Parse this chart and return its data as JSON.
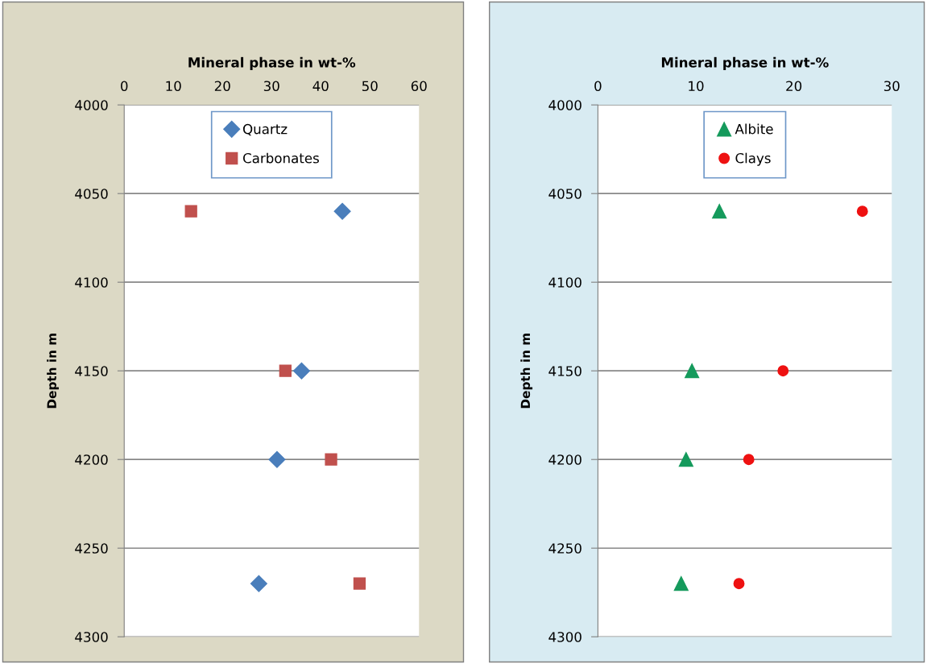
{
  "chart_data": [
    {
      "type": "scatter",
      "xlabel": "Mineral phase in wt-%",
      "ylabel": "Depth in m",
      "xlim": [
        0,
        60
      ],
      "xticks": [
        0,
        10,
        20,
        30,
        40,
        50,
        60
      ],
      "ylim": [
        4300,
        4000
      ],
      "yticks": [
        4000,
        4050,
        4100,
        4150,
        4200,
        4250,
        4300
      ],
      "grid": "y",
      "legend": "top",
      "series": [
        {
          "name": "Quartz",
          "color": "#4a7ebb",
          "marker": "diamond",
          "x": [
            44.4,
            36.1,
            31.1,
            27.4
          ],
          "values": [
            4060,
            4150,
            4200,
            4270
          ]
        },
        {
          "name": "Carbonates",
          "color": "#c0504d",
          "marker": "square",
          "x": [
            13.6,
            32.8,
            42.1,
            47.9
          ],
          "values": [
            4060,
            4150,
            4200,
            4270
          ]
        }
      ]
    },
    {
      "type": "scatter",
      "xlabel": "Mineral phase in wt-%",
      "ylabel": "Depth in m",
      "xlim": [
        0,
        30
      ],
      "xticks": [
        0,
        10,
        20,
        30
      ],
      "ylim": [
        4300,
        4000
      ],
      "yticks": [
        4000,
        4050,
        4100,
        4150,
        4200,
        4250,
        4300
      ],
      "grid": "y",
      "legend": "top",
      "series": [
        {
          "name": "Albite",
          "color": "#159a5c",
          "marker": "triangle",
          "x": [
            12.4,
            9.6,
            9.0,
            8.5
          ],
          "values": [
            4060,
            4150,
            4200,
            4270
          ]
        },
        {
          "name": "Clays",
          "color": "#ee1111",
          "marker": "circle",
          "x": [
            27.0,
            18.9,
            15.4,
            14.4
          ],
          "values": [
            4060,
            4150,
            4200,
            4270
          ]
        }
      ]
    }
  ]
}
